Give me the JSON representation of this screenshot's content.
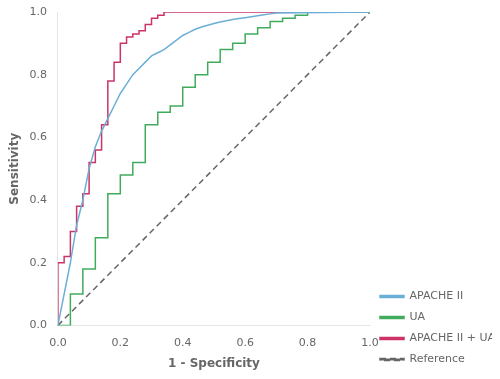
{
  "chart_data": {
    "type": "line",
    "xlabel": "1 - Specificity",
    "ylabel": "Sensitivity",
    "xlim": [
      0.0,
      1.0
    ],
    "ylim": [
      0.0,
      1.0
    ],
    "xticks": [
      {
        "value": 0.0,
        "label": "0.0"
      },
      0.2,
      0.4,
      0.6,
      0.8,
      {
        "value": 1.0,
        "label": "1.0"
      }
    ],
    "yticks": [
      {
        "value": 0.0,
        "label": "0.0"
      },
      0.2,
      0.4,
      0.6,
      0.8,
      {
        "value": 1.0,
        "label": "1.0"
      }
    ],
    "grid": false,
    "legend": "lower right",
    "series": [
      {
        "name": "APACHE II",
        "color": "#6baed6",
        "line_style": "solid",
        "x": [
          0.0,
          0.02,
          0.04,
          0.06,
          0.08,
          0.1,
          0.12,
          0.14,
          0.16,
          0.18,
          0.2,
          0.22,
          0.24,
          0.26,
          0.28,
          0.3,
          0.32,
          0.34,
          0.36,
          0.38,
          0.4,
          0.42,
          0.44,
          0.46,
          0.48,
          0.5,
          0.52,
          0.54,
          0.56,
          0.58,
          0.6,
          0.62,
          0.64,
          0.66,
          0.68,
          0.7,
          1.0
        ],
        "values": [
          0.0,
          0.1,
          0.2,
          0.32,
          0.4,
          0.5,
          0.57,
          0.62,
          0.66,
          0.7,
          0.74,
          0.77,
          0.8,
          0.82,
          0.84,
          0.86,
          0.87,
          0.88,
          0.895,
          0.91,
          0.925,
          0.935,
          0.945,
          0.952,
          0.958,
          0.963,
          0.968,
          0.972,
          0.976,
          0.979,
          0.982,
          0.985,
          0.988,
          0.991,
          0.994,
          0.997,
          1.0
        ]
      },
      {
        "name": "UA",
        "color": "#41ab5d",
        "line_style": "solid",
        "x": [
          0.0,
          0.04,
          0.04,
          0.08,
          0.08,
          0.12,
          0.12,
          0.16,
          0.16,
          0.2,
          0.2,
          0.24,
          0.24,
          0.28,
          0.28,
          0.32,
          0.32,
          0.36,
          0.36,
          0.4,
          0.4,
          0.44,
          0.44,
          0.48,
          0.48,
          0.52,
          0.52,
          0.56,
          0.56,
          0.6,
          0.6,
          0.64,
          0.64,
          0.68,
          0.68,
          0.72,
          0.72,
          0.76,
          0.76,
          0.8,
          0.8,
          1.0
        ],
        "values": [
          0.0,
          0.0,
          0.1,
          0.1,
          0.18,
          0.18,
          0.28,
          0.28,
          0.42,
          0.42,
          0.48,
          0.48,
          0.52,
          0.52,
          0.64,
          0.64,
          0.68,
          0.68,
          0.7,
          0.7,
          0.76,
          0.76,
          0.8,
          0.8,
          0.84,
          0.84,
          0.88,
          0.88,
          0.9,
          0.9,
          0.93,
          0.93,
          0.95,
          0.95,
          0.97,
          0.97,
          0.98,
          0.98,
          0.99,
          0.99,
          1.0,
          1.0
        ]
      },
      {
        "name": "APACHE II + UA",
        "color": "#cc3366",
        "line_style": "solid",
        "x": [
          0.0,
          0.0,
          0.02,
          0.02,
          0.04,
          0.04,
          0.06,
          0.06,
          0.08,
          0.08,
          0.1,
          0.1,
          0.12,
          0.12,
          0.14,
          0.14,
          0.16,
          0.16,
          0.18,
          0.18,
          0.2,
          0.2,
          0.22,
          0.22,
          0.24,
          0.24,
          0.26,
          0.26,
          0.28,
          0.28,
          0.3,
          0.3,
          0.32,
          0.32,
          0.34,
          0.34,
          0.36,
          0.36,
          0.38,
          0.38,
          0.4,
          0.4,
          1.0
        ],
        "values": [
          0.0,
          0.2,
          0.2,
          0.22,
          0.22,
          0.3,
          0.3,
          0.38,
          0.38,
          0.42,
          0.42,
          0.52,
          0.52,
          0.56,
          0.56,
          0.64,
          0.64,
          0.78,
          0.78,
          0.84,
          0.84,
          0.9,
          0.9,
          0.92,
          0.92,
          0.93,
          0.93,
          0.94,
          0.94,
          0.96,
          0.96,
          0.98,
          0.98,
          0.99,
          0.99,
          1.0,
          1.0,
          1.0,
          1.0,
          1.0,
          1.0,
          1.0,
          1.0
        ]
      },
      {
        "name": "Reference",
        "color": "#666666",
        "line_style": "dashed",
        "x": [
          0,
          1
        ],
        "values": [
          0,
          1
        ]
      }
    ]
  }
}
